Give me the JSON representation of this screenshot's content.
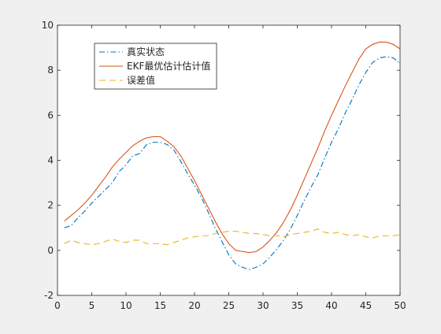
{
  "chart_data": {
    "type": "line",
    "title": "",
    "xlabel": "",
    "ylabel": "",
    "xlim": [
      0,
      50
    ],
    "ylim": [
      -2,
      10
    ],
    "xticks": [
      0,
      5,
      10,
      15,
      20,
      25,
      30,
      35,
      40,
      45,
      50
    ],
    "yticks": [
      -2,
      0,
      2,
      4,
      6,
      8,
      10
    ],
    "grid": false,
    "legend_position": "top-left",
    "x": [
      1,
      2,
      3,
      4,
      5,
      6,
      7,
      8,
      9,
      10,
      11,
      12,
      13,
      14,
      15,
      16,
      17,
      18,
      19,
      20,
      21,
      22,
      23,
      24,
      25,
      26,
      27,
      28,
      29,
      30,
      31,
      32,
      33,
      34,
      35,
      36,
      37,
      38,
      39,
      40,
      41,
      42,
      43,
      44,
      45,
      46,
      47,
      48,
      49,
      50
    ],
    "series": [
      {
        "name": "真实状态",
        "color": "#0072BD",
        "style": "dashdot",
        "values": [
          1.0,
          1.1,
          1.45,
          1.75,
          2.1,
          2.4,
          2.7,
          3.0,
          3.5,
          3.8,
          4.2,
          4.3,
          4.7,
          4.8,
          4.8,
          4.7,
          4.45,
          3.95,
          3.4,
          2.9,
          2.35,
          1.7,
          1.0,
          0.4,
          -0.2,
          -0.6,
          -0.75,
          -0.85,
          -0.75,
          -0.6,
          -0.3,
          0.05,
          0.45,
          0.95,
          1.55,
          2.2,
          2.8,
          3.35,
          4.1,
          4.8,
          5.4,
          6.1,
          6.7,
          7.35,
          7.9,
          8.35,
          8.55,
          8.6,
          8.55,
          8.3
        ]
      },
      {
        "name": "EKF最优估计估计值",
        "color": "#D95319",
        "style": "solid",
        "values": [
          1.3,
          1.55,
          1.8,
          2.1,
          2.45,
          2.85,
          3.25,
          3.7,
          4.05,
          4.35,
          4.65,
          4.85,
          5.0,
          5.05,
          5.05,
          4.85,
          4.6,
          4.2,
          3.65,
          3.1,
          2.5,
          1.9,
          1.3,
          0.75,
          0.3,
          0.0,
          -0.05,
          -0.1,
          -0.05,
          0.15,
          0.45,
          0.8,
          1.25,
          1.8,
          2.45,
          3.15,
          3.85,
          4.55,
          5.3,
          6.0,
          6.65,
          7.3,
          7.9,
          8.5,
          8.95,
          9.15,
          9.25,
          9.25,
          9.15,
          8.95
        ]
      },
      {
        "name": "误差值",
        "color": "#EDB120",
        "style": "dashed",
        "values": [
          0.3,
          0.45,
          0.35,
          0.3,
          0.25,
          0.3,
          0.4,
          0.5,
          0.4,
          0.35,
          0.45,
          0.45,
          0.3,
          0.3,
          0.3,
          0.25,
          0.35,
          0.45,
          0.55,
          0.6,
          0.65,
          0.65,
          0.75,
          0.8,
          0.85,
          0.85,
          0.8,
          0.75,
          0.75,
          0.7,
          0.65,
          0.65,
          0.6,
          0.7,
          0.75,
          0.8,
          0.85,
          0.95,
          0.8,
          0.75,
          0.8,
          0.7,
          0.65,
          0.7,
          0.6,
          0.55,
          0.65,
          0.65,
          0.65,
          0.7
        ]
      }
    ]
  }
}
